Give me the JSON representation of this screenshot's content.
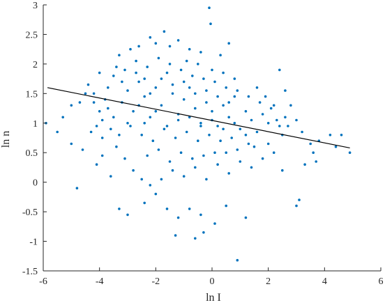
{
  "chart_data": {
    "type": "scatter",
    "title": "",
    "xlabel": "ln I",
    "ylabel": "ln n",
    "xlim": [
      -6,
      6
    ],
    "ylim": [
      -1.5,
      3
    ],
    "x_ticks": [
      -6,
      -4,
      -2,
      0,
      2,
      4,
      6
    ],
    "x_tick_labels": [
      "-6",
      "-4",
      "-2",
      "0",
      "2",
      "4",
      "6"
    ],
    "y_ticks": [
      -1.5,
      -1,
      -0.5,
      0,
      0.5,
      1,
      1.5,
      2,
      2.5,
      3
    ],
    "y_tick_labels": [
      "-1.5",
      "-1",
      "-0.5",
      "0",
      "0.5",
      "1",
      "1.5",
      "2",
      "2.5",
      "3"
    ],
    "grid": false,
    "box": "left-bottom",
    "marker_color": "#0072BD",
    "fit_color": "#000000",
    "fit_line": {
      "x": [
        -5.85,
        4.9
      ],
      "y": [
        1.6,
        0.58
      ]
    },
    "series": [
      {
        "points": [
          [
            -3.2,
            1.35
          ],
          [
            -3.0,
            1.55
          ],
          [
            -2.8,
            1.2
          ],
          [
            -2.6,
            1.7
          ],
          [
            -2.4,
            1.45
          ],
          [
            -2.2,
            1.1
          ],
          [
            -2.0,
            1.6
          ],
          [
            -1.8,
            1.3
          ],
          [
            -1.6,
            1.85
          ],
          [
            -1.4,
            1.5
          ],
          [
            -1.2,
            1.15
          ],
          [
            -1.0,
            1.4
          ],
          [
            -0.8,
            1.6
          ],
          [
            -0.6,
            1.25
          ],
          [
            -0.4,
            1.0
          ],
          [
            -0.2,
            1.35
          ],
          [
            0.0,
            1.2
          ],
          [
            0.2,
            0.95
          ],
          [
            0.4,
            1.3
          ],
          [
            0.6,
            1.1
          ],
          [
            0.8,
            1.45
          ],
          [
            1.0,
            0.9
          ],
          [
            1.2,
            1.2
          ],
          [
            1.4,
            1.05
          ],
          [
            1.6,
            0.85
          ],
          [
            1.8,
            1.15
          ],
          [
            2.0,
            1.0
          ],
          [
            2.2,
            1.3
          ],
          [
            2.4,
            0.95
          ],
          [
            2.6,
            1.1
          ],
          [
            -2.9,
            0.95
          ],
          [
            -2.5,
            0.8
          ],
          [
            -2.1,
            0.7
          ],
          [
            -1.7,
            0.9
          ],
          [
            -1.3,
            0.75
          ],
          [
            -0.9,
            0.85
          ],
          [
            -0.5,
            0.7
          ],
          [
            -0.1,
            0.8
          ],
          [
            0.3,
            0.7
          ],
          [
            0.7,
            0.75
          ],
          [
            -3.5,
            1.8
          ],
          [
            -3.1,
            1.9
          ],
          [
            -2.7,
            2.05
          ],
          [
            -2.3,
            1.95
          ],
          [
            -1.9,
            2.1
          ],
          [
            -1.5,
            2.0
          ],
          [
            -1.1,
            1.9
          ],
          [
            -0.7,
            1.8
          ],
          [
            -0.3,
            1.75
          ],
          [
            0.1,
            1.7
          ],
          [
            0.5,
            1.6
          ],
          [
            0.9,
            1.55
          ],
          [
            1.3,
            1.45
          ],
          [
            1.7,
            1.35
          ],
          [
            2.1,
            1.25
          ],
          [
            -3.8,
            1.4
          ],
          [
            -4.0,
            1.2
          ],
          [
            -4.2,
            1.5
          ],
          [
            -3.9,
            1.05
          ],
          [
            -3.6,
            0.9
          ],
          [
            -2.2,
            2.45
          ],
          [
            -1.7,
            2.55
          ],
          [
            -1.2,
            2.4
          ],
          [
            -2.6,
            2.3
          ],
          [
            -0.8,
            2.25
          ],
          [
            -0.4,
            2.2
          ],
          [
            0.3,
            2.15
          ],
          [
            -3.3,
            2.15
          ],
          [
            -4.0,
            1.85
          ],
          [
            -4.5,
            1.5
          ],
          [
            -4.7,
            1.35
          ],
          [
            -5.0,
            1.3
          ],
          [
            -5.3,
            1.1
          ],
          [
            -5.5,
            0.85
          ],
          [
            -5.0,
            0.65
          ],
          [
            -4.6,
            0.55
          ],
          [
            -5.9,
            1.0
          ],
          [
            -4.8,
            -0.1
          ],
          [
            -4.1,
            0.3
          ],
          [
            -3.6,
            0.1
          ],
          [
            -3.9,
            0.45
          ],
          [
            -4.3,
            0.85
          ],
          [
            -3.3,
            -0.45
          ],
          [
            -3.0,
            -0.55
          ],
          [
            -2.4,
            -0.35
          ],
          [
            -2.0,
            -0.2
          ],
          [
            -1.6,
            -0.45
          ],
          [
            -1.2,
            -0.6
          ],
          [
            -0.8,
            -0.45
          ],
          [
            -0.4,
            -0.55
          ],
          [
            -1.8,
            0.05
          ],
          [
            -1.4,
            0.2
          ],
          [
            -1.0,
            0.1
          ],
          [
            -0.6,
            0.25
          ],
          [
            -0.2,
            0.05
          ],
          [
            0.2,
            0.3
          ],
          [
            0.6,
            0.15
          ],
          [
            1.0,
            0.35
          ],
          [
            1.4,
            0.25
          ],
          [
            1.8,
            0.4
          ],
          [
            -0.3,
            -0.85
          ],
          [
            -0.6,
            -0.95
          ],
          [
            -1.3,
            -0.9
          ],
          [
            0.1,
            -0.7
          ],
          [
            0.5,
            -0.4
          ],
          [
            0.9,
            -1.32
          ],
          [
            1.2,
            -0.6
          ],
          [
            -0.1,
            2.95
          ],
          [
            -0.05,
            2.68
          ],
          [
            0.6,
            2.35
          ],
          [
            2.4,
            1.9
          ],
          [
            2.6,
            1.55
          ],
          [
            2.8,
            1.3
          ],
          [
            3.0,
            1.05
          ],
          [
            3.2,
            0.85
          ],
          [
            3.5,
            0.65
          ],
          [
            3.8,
            0.7
          ],
          [
            4.2,
            0.8
          ],
          [
            4.6,
            0.8
          ],
          [
            4.9,
            0.5
          ],
          [
            3.1,
            -0.3
          ],
          [
            3.0,
            -0.4
          ],
          [
            2.5,
            0.2
          ],
          [
            2.2,
            0.5
          ],
          [
            3.3,
            0.3
          ],
          [
            3.7,
            0.35
          ],
          [
            4.4,
            0.6
          ],
          [
            3.6,
            0.5
          ],
          [
            2.0,
            0.65
          ],
          [
            1.5,
            0.6
          ],
          [
            -2.4,
            1.0
          ],
          [
            -2.0,
            1.2
          ],
          [
            -1.6,
            0.95
          ],
          [
            -1.2,
            1.05
          ],
          [
            -0.8,
            1.1
          ],
          [
            -0.4,
            0.95
          ],
          [
            0.0,
            1.05
          ],
          [
            0.4,
            0.9
          ],
          [
            0.8,
            1.0
          ],
          [
            1.2,
            0.8
          ],
          [
            -3.0,
            1.0
          ],
          [
            -2.6,
            1.3
          ],
          [
            -2.2,
            1.5
          ],
          [
            -1.8,
            1.75
          ],
          [
            -1.4,
            1.65
          ],
          [
            -1.0,
            1.7
          ],
          [
            -0.6,
            1.5
          ],
          [
            -0.2,
            1.55
          ],
          [
            0.2,
            1.45
          ],
          [
            0.6,
            1.35
          ],
          [
            -2.3,
            0.45
          ],
          [
            -1.9,
            0.55
          ],
          [
            -1.5,
            0.35
          ],
          [
            -1.1,
            0.5
          ],
          [
            -0.7,
            0.4
          ],
          [
            -0.3,
            0.45
          ],
          [
            0.1,
            0.5
          ],
          [
            0.5,
            0.5
          ],
          [
            0.9,
            0.55
          ],
          [
            1.3,
            0.65
          ],
          [
            -3.4,
            0.6
          ],
          [
            -3.1,
            0.4
          ],
          [
            -2.8,
            0.2
          ],
          [
            -2.5,
            0.05
          ],
          [
            -2.2,
            -0.05
          ],
          [
            -3.7,
            1.6
          ],
          [
            -3.4,
            1.95
          ],
          [
            -2.9,
            2.25
          ],
          [
            -2.0,
            2.35
          ],
          [
            -1.5,
            2.3
          ],
          [
            1.6,
            1.6
          ],
          [
            1.9,
            1.45
          ],
          [
            2.3,
            1.05
          ],
          [
            2.5,
            0.8
          ],
          [
            2.7,
            0.95
          ],
          [
            -0.9,
            2.05
          ],
          [
            -0.5,
            2.0
          ],
          [
            0.0,
            1.9
          ],
          [
            0.4,
            1.85
          ],
          [
            0.8,
            1.75
          ],
          [
            -4.4,
            1.65
          ],
          [
            -4.2,
            1.35
          ],
          [
            -4.1,
            0.95
          ],
          [
            -3.9,
            0.75
          ],
          [
            -3.7,
            1.25
          ],
          [
            -3.5,
            1.1
          ],
          [
            -3.3,
            0.8
          ],
          [
            -3.2,
            1.7
          ],
          [
            -2.7,
            1.85
          ],
          [
            -2.4,
            1.75
          ]
        ]
      }
    ]
  }
}
